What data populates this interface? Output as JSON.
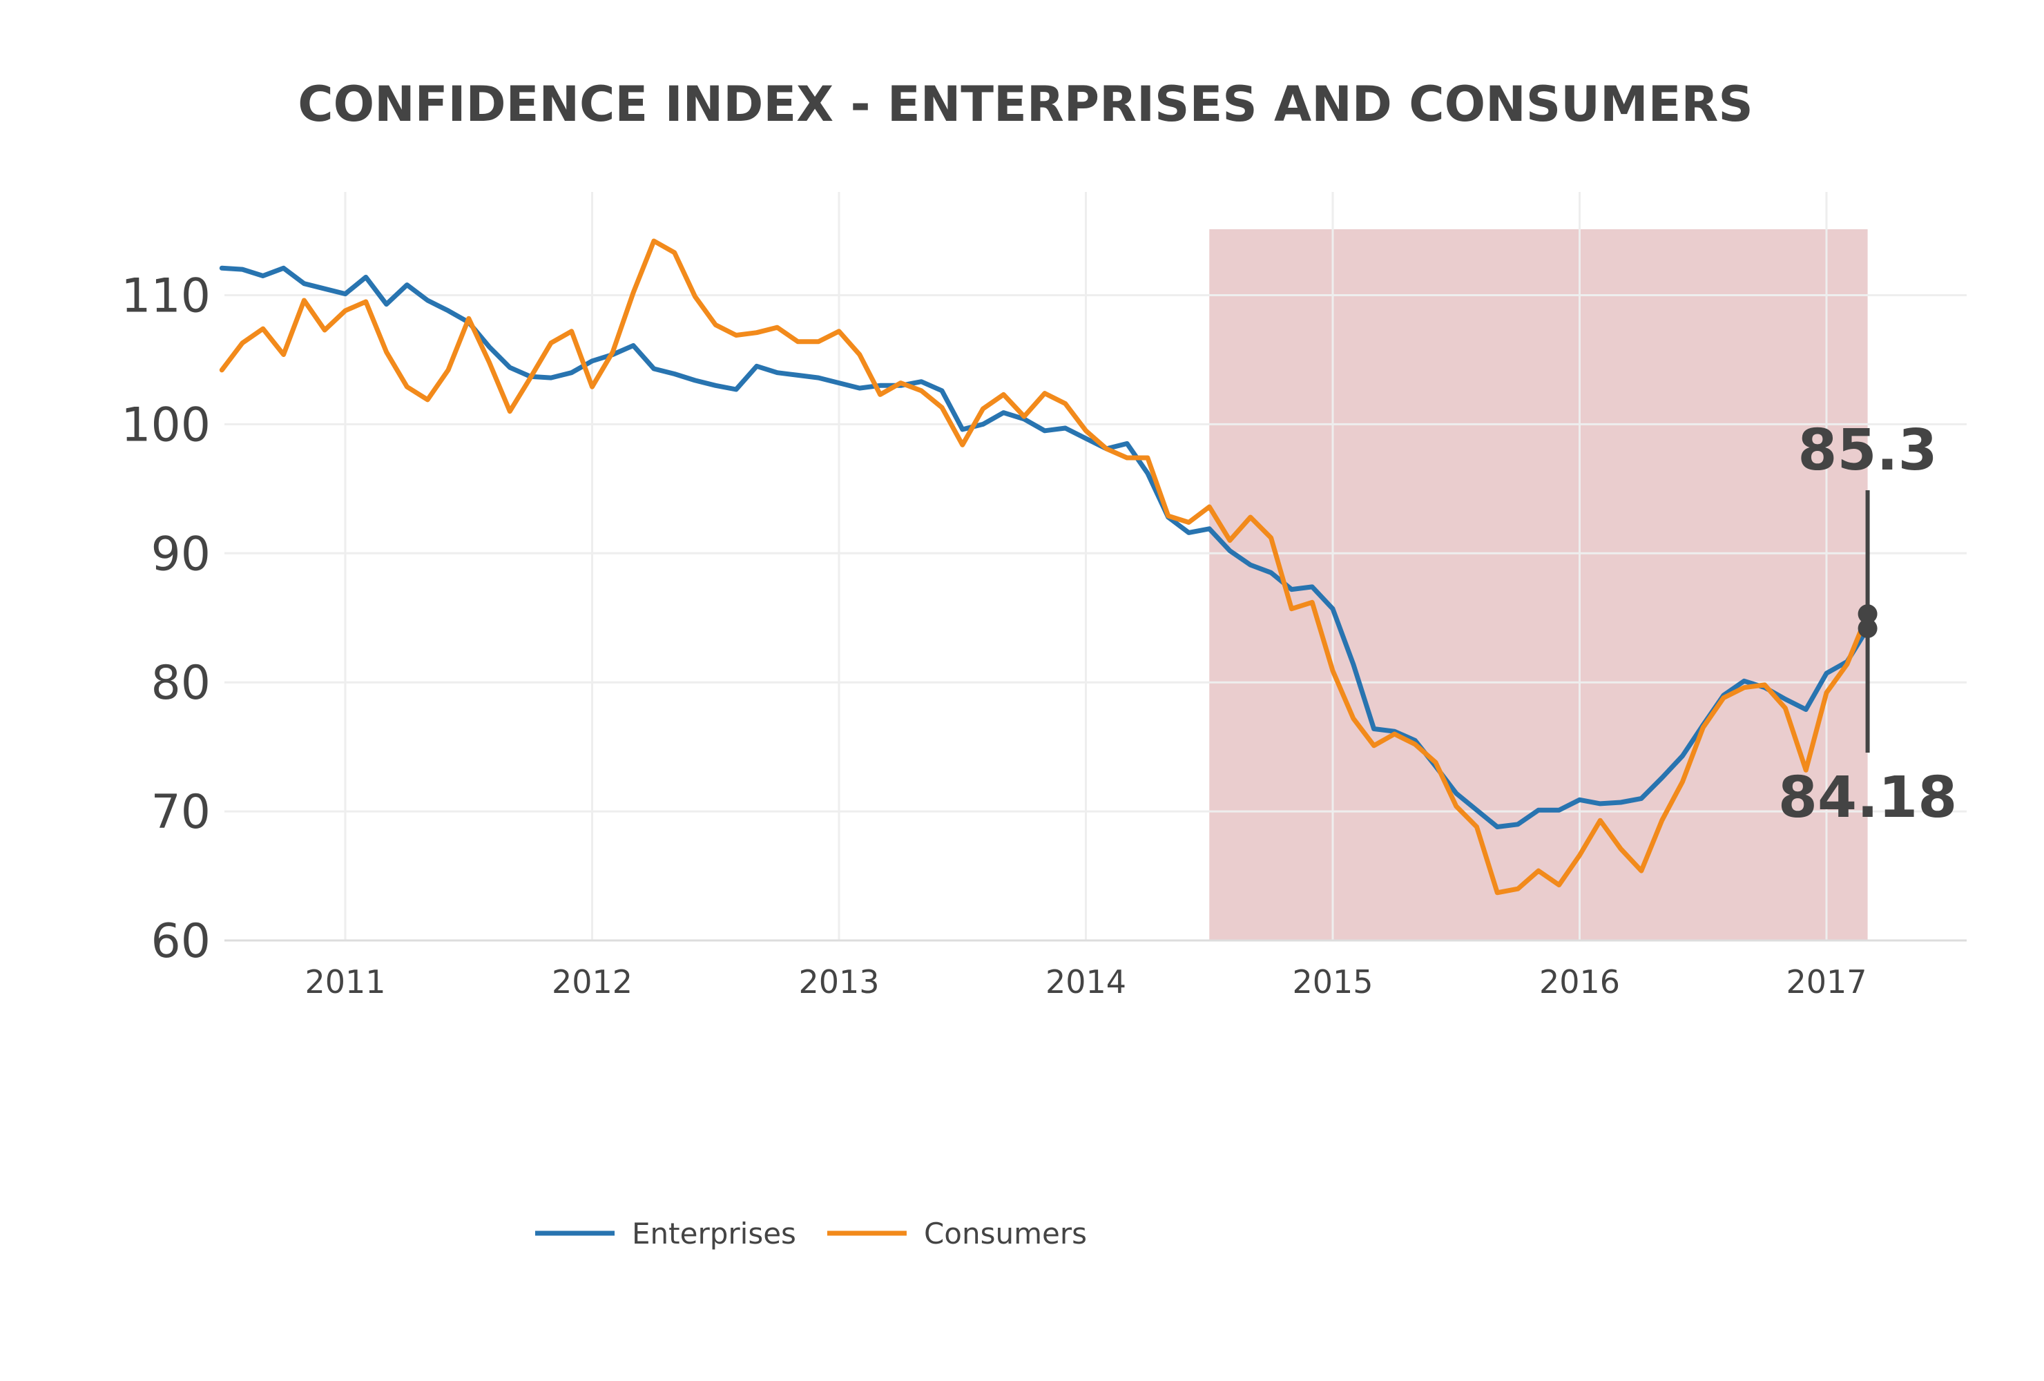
{
  "chart_data": {
    "type": "line",
    "title": "CONFIDENCE INDEX - ENTERPRISES AND CONSUMERS",
    "xlabel": "",
    "ylabel": "",
    "x_start": "2010-07",
    "x_ticks": [
      "2011",
      "2012",
      "2013",
      "2014",
      "2015",
      "2016",
      "2017"
    ],
    "y_ticks": [
      60,
      70,
      80,
      90,
      100,
      110
    ],
    "ylim": [
      60,
      118
    ],
    "grid": true,
    "legend_position": "bottom",
    "shaded_period": {
      "start": "2014-07",
      "end": "2017-03",
      "color": "#e8c8c9"
    },
    "series": [
      {
        "name": "Enterprises",
        "color": "#2874b0",
        "values": [
          112.1,
          112.0,
          111.5,
          112.1,
          110.9,
          110.5,
          110.1,
          111.4,
          109.3,
          110.8,
          109.6,
          108.8,
          107.9,
          106.0,
          104.4,
          103.7,
          103.6,
          104.0,
          104.9,
          105.4,
          106.1,
          104.3,
          103.9,
          103.4,
          103.0,
          102.7,
          104.5,
          104.0,
          103.8,
          103.6,
          103.2,
          102.8,
          103.0,
          103.0,
          103.3,
          102.6,
          99.6,
          100.0,
          100.9,
          100.4,
          99.5,
          99.7,
          98.9,
          98.1,
          98.5,
          96.2,
          92.8,
          91.6,
          91.9,
          90.2,
          89.1,
          88.5,
          87.2,
          87.4,
          85.7,
          81.4,
          76.4,
          76.2,
          75.5,
          73.5,
          71.4,
          70.1,
          68.8,
          69.0,
          70.1,
          70.1,
          70.9,
          70.6,
          70.7,
          71.0,
          72.6,
          74.3,
          76.7,
          79.0,
          80.1,
          79.6,
          78.7,
          77.9,
          80.7,
          81.6,
          84.18
        ],
        "end_label": "84.18"
      },
      {
        "name": "Consumers",
        "color": "#f28a1b",
        "values": [
          104.2,
          106.3,
          107.4,
          105.4,
          109.6,
          107.3,
          108.8,
          109.5,
          105.6,
          102.9,
          101.9,
          104.2,
          108.2,
          104.8,
          101.0,
          103.6,
          106.3,
          107.2,
          102.9,
          105.6,
          110.2,
          114.2,
          113.3,
          109.9,
          107.7,
          106.9,
          107.1,
          107.5,
          106.4,
          106.4,
          107.2,
          105.4,
          102.3,
          103.2,
          102.6,
          101.3,
          98.4,
          101.2,
          102.3,
          100.6,
          102.4,
          101.6,
          99.5,
          98.1,
          97.4,
          97.4,
          92.9,
          92.4,
          93.6,
          91.0,
          92.8,
          91.2,
          85.7,
          86.2,
          80.9,
          77.2,
          75.1,
          76.0,
          75.2,
          73.8,
          70.4,
          68.8,
          63.7,
          64.0,
          65.4,
          64.3,
          66.6,
          69.3,
          67.1,
          65.4,
          69.3,
          72.3,
          76.5,
          78.8,
          79.6,
          79.8,
          78.0,
          73.2,
          79.2,
          81.4,
          85.3
        ],
        "end_label": "85.3"
      }
    ]
  }
}
